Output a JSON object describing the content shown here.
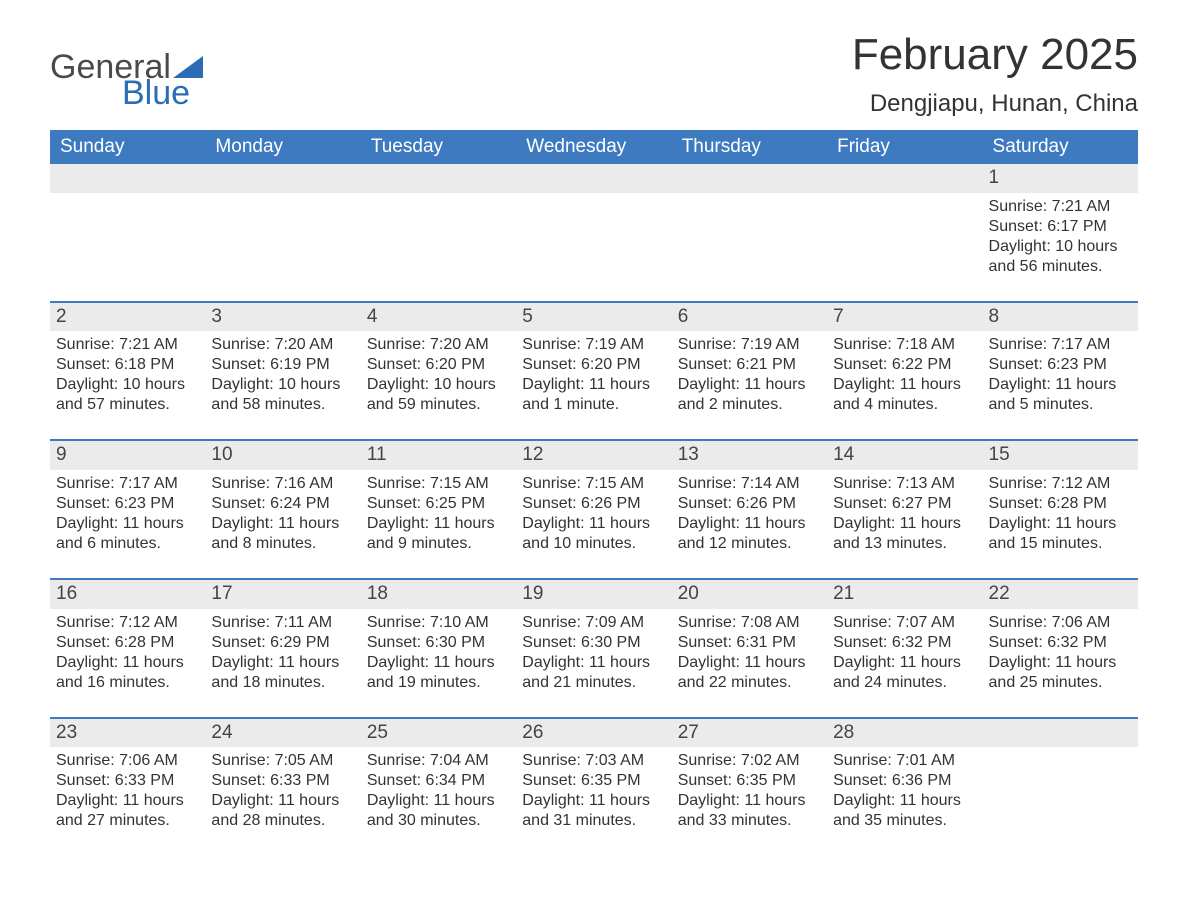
{
  "logo": {
    "line1": "General",
    "line2": "Blue",
    "sail_color": "#2a6db5"
  },
  "title": "February 2025",
  "location": "Dengjiapu, Hunan, China",
  "colors": {
    "header_bg": "#3e7ac0",
    "header_text": "#ffffff",
    "row_separator": "#3e7ac0",
    "daynum_bg": "#ebebeb",
    "body_text": "#333333",
    "background": "#ffffff"
  },
  "fonts": {
    "month_title_pt": 44,
    "location_pt": 24,
    "weekday_pt": 19,
    "daynum_pt": 19,
    "body_pt": 16
  },
  "weekdays": [
    "Sunday",
    "Monday",
    "Tuesday",
    "Wednesday",
    "Thursday",
    "Friday",
    "Saturday"
  ],
  "weeks": [
    [
      null,
      null,
      null,
      null,
      null,
      null,
      {
        "day": "1",
        "sunrise": "Sunrise: 7:21 AM",
        "sunset": "Sunset: 6:17 PM",
        "daylight1": "Daylight: 10 hours",
        "daylight2": "and 56 minutes."
      }
    ],
    [
      {
        "day": "2",
        "sunrise": "Sunrise: 7:21 AM",
        "sunset": "Sunset: 6:18 PM",
        "daylight1": "Daylight: 10 hours",
        "daylight2": "and 57 minutes."
      },
      {
        "day": "3",
        "sunrise": "Sunrise: 7:20 AM",
        "sunset": "Sunset: 6:19 PM",
        "daylight1": "Daylight: 10 hours",
        "daylight2": "and 58 minutes."
      },
      {
        "day": "4",
        "sunrise": "Sunrise: 7:20 AM",
        "sunset": "Sunset: 6:20 PM",
        "daylight1": "Daylight: 10 hours",
        "daylight2": "and 59 minutes."
      },
      {
        "day": "5",
        "sunrise": "Sunrise: 7:19 AM",
        "sunset": "Sunset: 6:20 PM",
        "daylight1": "Daylight: 11 hours",
        "daylight2": "and 1 minute."
      },
      {
        "day": "6",
        "sunrise": "Sunrise: 7:19 AM",
        "sunset": "Sunset: 6:21 PM",
        "daylight1": "Daylight: 11 hours",
        "daylight2": "and 2 minutes."
      },
      {
        "day": "7",
        "sunrise": "Sunrise: 7:18 AM",
        "sunset": "Sunset: 6:22 PM",
        "daylight1": "Daylight: 11 hours",
        "daylight2": "and 4 minutes."
      },
      {
        "day": "8",
        "sunrise": "Sunrise: 7:17 AM",
        "sunset": "Sunset: 6:23 PM",
        "daylight1": "Daylight: 11 hours",
        "daylight2": "and 5 minutes."
      }
    ],
    [
      {
        "day": "9",
        "sunrise": "Sunrise: 7:17 AM",
        "sunset": "Sunset: 6:23 PM",
        "daylight1": "Daylight: 11 hours",
        "daylight2": "and 6 minutes."
      },
      {
        "day": "10",
        "sunrise": "Sunrise: 7:16 AM",
        "sunset": "Sunset: 6:24 PM",
        "daylight1": "Daylight: 11 hours",
        "daylight2": "and 8 minutes."
      },
      {
        "day": "11",
        "sunrise": "Sunrise: 7:15 AM",
        "sunset": "Sunset: 6:25 PM",
        "daylight1": "Daylight: 11 hours",
        "daylight2": "and 9 minutes."
      },
      {
        "day": "12",
        "sunrise": "Sunrise: 7:15 AM",
        "sunset": "Sunset: 6:26 PM",
        "daylight1": "Daylight: 11 hours",
        "daylight2": "and 10 minutes."
      },
      {
        "day": "13",
        "sunrise": "Sunrise: 7:14 AM",
        "sunset": "Sunset: 6:26 PM",
        "daylight1": "Daylight: 11 hours",
        "daylight2": "and 12 minutes."
      },
      {
        "day": "14",
        "sunrise": "Sunrise: 7:13 AM",
        "sunset": "Sunset: 6:27 PM",
        "daylight1": "Daylight: 11 hours",
        "daylight2": "and 13 minutes."
      },
      {
        "day": "15",
        "sunrise": "Sunrise: 7:12 AM",
        "sunset": "Sunset: 6:28 PM",
        "daylight1": "Daylight: 11 hours",
        "daylight2": "and 15 minutes."
      }
    ],
    [
      {
        "day": "16",
        "sunrise": "Sunrise: 7:12 AM",
        "sunset": "Sunset: 6:28 PM",
        "daylight1": "Daylight: 11 hours",
        "daylight2": "and 16 minutes."
      },
      {
        "day": "17",
        "sunrise": "Sunrise: 7:11 AM",
        "sunset": "Sunset: 6:29 PM",
        "daylight1": "Daylight: 11 hours",
        "daylight2": "and 18 minutes."
      },
      {
        "day": "18",
        "sunrise": "Sunrise: 7:10 AM",
        "sunset": "Sunset: 6:30 PM",
        "daylight1": "Daylight: 11 hours",
        "daylight2": "and 19 minutes."
      },
      {
        "day": "19",
        "sunrise": "Sunrise: 7:09 AM",
        "sunset": "Sunset: 6:30 PM",
        "daylight1": "Daylight: 11 hours",
        "daylight2": "and 21 minutes."
      },
      {
        "day": "20",
        "sunrise": "Sunrise: 7:08 AM",
        "sunset": "Sunset: 6:31 PM",
        "daylight1": "Daylight: 11 hours",
        "daylight2": "and 22 minutes."
      },
      {
        "day": "21",
        "sunrise": "Sunrise: 7:07 AM",
        "sunset": "Sunset: 6:32 PM",
        "daylight1": "Daylight: 11 hours",
        "daylight2": "and 24 minutes."
      },
      {
        "day": "22",
        "sunrise": "Sunrise: 7:06 AM",
        "sunset": "Sunset: 6:32 PM",
        "daylight1": "Daylight: 11 hours",
        "daylight2": "and 25 minutes."
      }
    ],
    [
      {
        "day": "23",
        "sunrise": "Sunrise: 7:06 AM",
        "sunset": "Sunset: 6:33 PM",
        "daylight1": "Daylight: 11 hours",
        "daylight2": "and 27 minutes."
      },
      {
        "day": "24",
        "sunrise": "Sunrise: 7:05 AM",
        "sunset": "Sunset: 6:33 PM",
        "daylight1": "Daylight: 11 hours",
        "daylight2": "and 28 minutes."
      },
      {
        "day": "25",
        "sunrise": "Sunrise: 7:04 AM",
        "sunset": "Sunset: 6:34 PM",
        "daylight1": "Daylight: 11 hours",
        "daylight2": "and 30 minutes."
      },
      {
        "day": "26",
        "sunrise": "Sunrise: 7:03 AM",
        "sunset": "Sunset: 6:35 PM",
        "daylight1": "Daylight: 11 hours",
        "daylight2": "and 31 minutes."
      },
      {
        "day": "27",
        "sunrise": "Sunrise: 7:02 AM",
        "sunset": "Sunset: 6:35 PM",
        "daylight1": "Daylight: 11 hours",
        "daylight2": "and 33 minutes."
      },
      {
        "day": "28",
        "sunrise": "Sunrise: 7:01 AM",
        "sunset": "Sunset: 6:36 PM",
        "daylight1": "Daylight: 11 hours",
        "daylight2": "and 35 minutes."
      },
      null
    ]
  ]
}
